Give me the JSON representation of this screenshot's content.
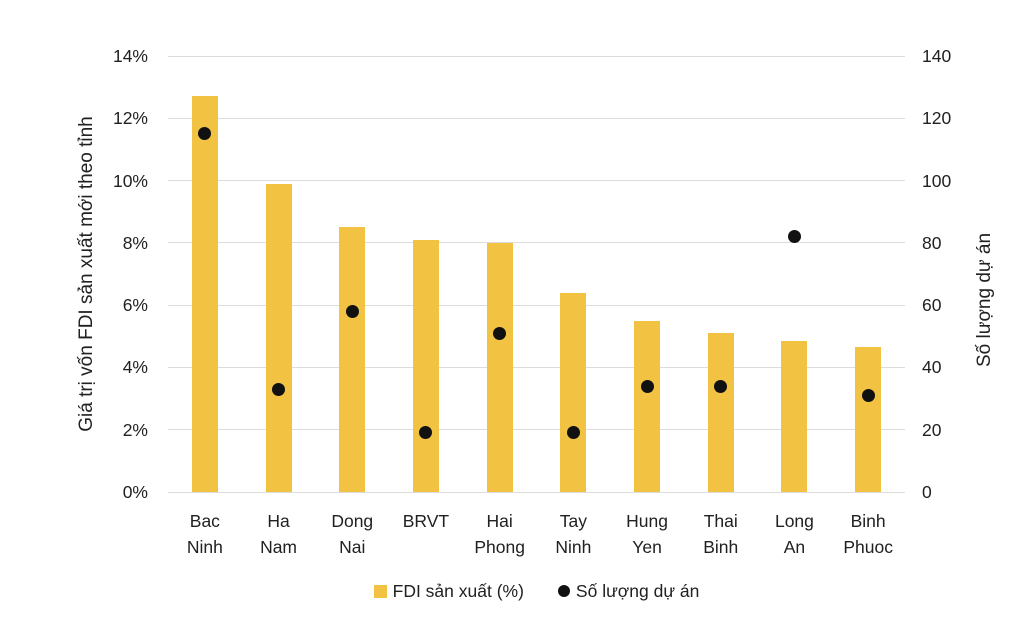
{
  "chart_data": {
    "type": "bar",
    "subtype": "combo-bar-scatter-dual-axis",
    "title": "",
    "categories": [
      "Bac\nNinh",
      "Ha\nNam",
      "Dong\nNai",
      "BRVT",
      "Hai\nPhong",
      "Tay\nNinh",
      "Hung\nYen",
      "Thai\nBinh",
      "Long\nAn",
      "Binh\nPhuoc"
    ],
    "series": [
      {
        "name": "FDI sản xuất (%)",
        "type": "bar",
        "axis": "left",
        "color": "#F2C342",
        "values": [
          12.7,
          9.9,
          8.5,
          8.1,
          8.0,
          6.4,
          5.5,
          5.1,
          4.85,
          4.65
        ]
      },
      {
        "name": "Số lượng dự án",
        "type": "scatter",
        "axis": "right",
        "color": "#111111",
        "values": [
          115,
          33,
          58,
          19,
          51,
          19,
          34,
          34,
          82,
          31
        ]
      }
    ],
    "left_axis": {
      "label": "Giá trị vốn FDI sản xuất mới theo tỉnh",
      "min": 0,
      "max": 14,
      "step": 2,
      "ticks": [
        "0%",
        "2%",
        "4%",
        "6%",
        "8%",
        "10%",
        "12%",
        "14%"
      ]
    },
    "right_axis": {
      "label": "Số lượng dự án",
      "min": 0,
      "max": 140,
      "step": 20,
      "ticks": [
        "0",
        "20",
        "40",
        "60",
        "80",
        "100",
        "120",
        "140"
      ]
    },
    "legend": {
      "position": "bottom",
      "items": [
        {
          "label": "FDI sản xuất (%)",
          "marker": "square",
          "color": "#F2C342"
        },
        {
          "label": "Số lượng dự án",
          "marker": "circle",
          "color": "#111111"
        }
      ]
    },
    "grid": {
      "horizontal": true,
      "color": "#DCDCDC"
    }
  },
  "colors": {
    "background": "#FFFFFF",
    "text": "#212121"
  }
}
